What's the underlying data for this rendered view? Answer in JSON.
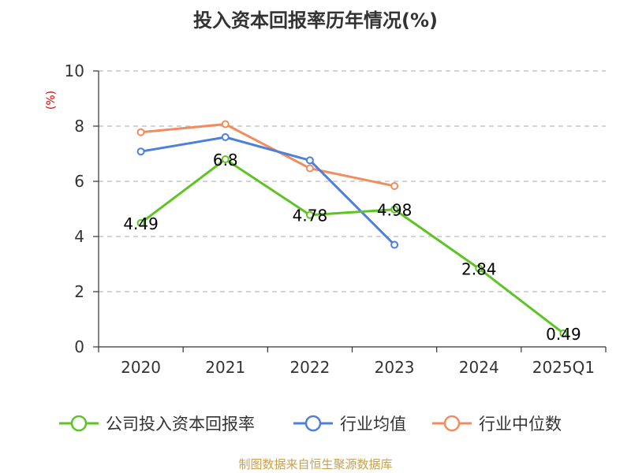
{
  "chart_data": {
    "type": "line",
    "title": "投入资本回报率历年情况(%)",
    "ylabel": "(%)",
    "xlabel": "",
    "categories": [
      "2020",
      "2021",
      "2022",
      "2023",
      "2024",
      "2025Q1"
    ],
    "ylim": [
      0,
      10
    ],
    "yticks": [
      "0",
      "2",
      "4",
      "6",
      "8",
      "10"
    ],
    "grid": true,
    "legend_position": "bottom",
    "series": [
      {
        "name": "公司投入资本回报率",
        "color": "#5ec424",
        "values": [
          4.49,
          6.8,
          4.78,
          4.98,
          2.84,
          0.49
        ],
        "labels": [
          "4.49",
          "6.8",
          "4.78",
          "4.98",
          "2.84",
          "0.49"
        ]
      },
      {
        "name": "行业均值",
        "color": "#4e7fdc",
        "values": [
          7.08,
          7.6,
          6.76,
          3.7,
          null,
          null
        ]
      },
      {
        "name": "行业中位数",
        "color": "#f28c5e",
        "values": [
          7.78,
          8.07,
          6.47,
          5.83,
          null,
          null
        ]
      }
    ]
  },
  "footer": {
    "source": "制图数据来自恒生聚源数据库"
  }
}
